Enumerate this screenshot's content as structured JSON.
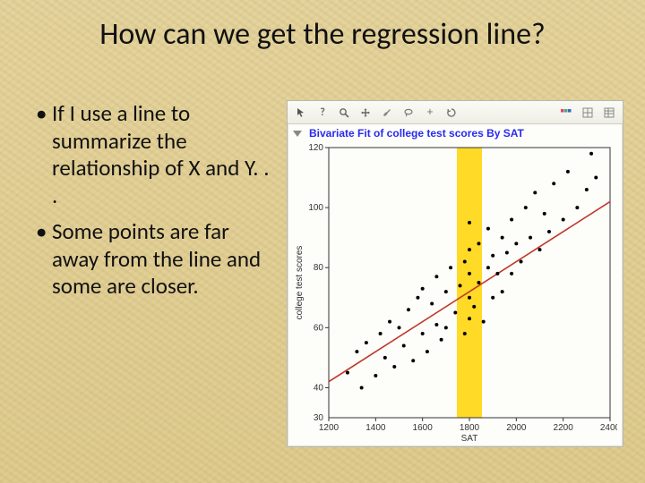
{
  "title": {
    "text": "How can we get the regression line?",
    "fontsize": 34
  },
  "bullets": {
    "fontsize": 25,
    "items": [
      "If I use a line to summarize the relationship of X and Y. . .",
      "Some points are far away from the line and some are closer."
    ]
  },
  "chart": {
    "header": {
      "text": "Bivariate Fit of college test scores By SAT",
      "fontsize": 12,
      "color": "#2a2af0"
    },
    "type": "scatter",
    "background_color": "#fdfdfa",
    "axis_color": "#333333",
    "tick_fontsize": 10,
    "label_fontsize": 10,
    "xlim": [
      1200,
      2400
    ],
    "xtick_step": 200,
    "ylim": [
      30,
      120
    ],
    "ytick_step": 20,
    "xlabel": "SAT",
    "ylabel": "college test scores",
    "regression_line": {
      "color": "#c0392b",
      "width": 1.6,
      "x1": 1200,
      "y1": 42,
      "x2": 2400,
      "y2": 102
    },
    "highlight_band": {
      "color": "#ffd400",
      "opacity": 0.85,
      "x": 1800,
      "width": 28
    },
    "marker": {
      "shape": "circle",
      "radius": 2.0,
      "color": "#000000"
    },
    "points": [
      [
        1280,
        45
      ],
      [
        1320,
        52
      ],
      [
        1340,
        40
      ],
      [
        1360,
        55
      ],
      [
        1400,
        44
      ],
      [
        1420,
        58
      ],
      [
        1440,
        50
      ],
      [
        1460,
        62
      ],
      [
        1480,
        47
      ],
      [
        1500,
        60
      ],
      [
        1520,
        54
      ],
      [
        1540,
        66
      ],
      [
        1560,
        49
      ],
      [
        1580,
        70
      ],
      [
        1600,
        58
      ],
      [
        1600,
        73
      ],
      [
        1620,
        52
      ],
      [
        1640,
        68
      ],
      [
        1660,
        61
      ],
      [
        1660,
        77
      ],
      [
        1680,
        56
      ],
      [
        1700,
        72
      ],
      [
        1700,
        60
      ],
      [
        1720,
        80
      ],
      [
        1740,
        65
      ],
      [
        1760,
        74
      ],
      [
        1780,
        58
      ],
      [
        1780,
        82
      ],
      [
        1800,
        63
      ],
      [
        1800,
        70
      ],
      [
        1800,
        78
      ],
      [
        1800,
        86
      ],
      [
        1800,
        95
      ],
      [
        1820,
        67
      ],
      [
        1840,
        75
      ],
      [
        1840,
        88
      ],
      [
        1860,
        62
      ],
      [
        1880,
        80
      ],
      [
        1880,
        93
      ],
      [
        1900,
        70
      ],
      [
        1900,
        84
      ],
      [
        1920,
        78
      ],
      [
        1940,
        90
      ],
      [
        1940,
        72
      ],
      [
        1960,
        85
      ],
      [
        1980,
        96
      ],
      [
        1980,
        78
      ],
      [
        2000,
        88
      ],
      [
        2020,
        82
      ],
      [
        2040,
        100
      ],
      [
        2060,
        90
      ],
      [
        2080,
        105
      ],
      [
        2100,
        86
      ],
      [
        2120,
        98
      ],
      [
        2140,
        92
      ],
      [
        2160,
        108
      ],
      [
        2200,
        96
      ],
      [
        2220,
        112
      ],
      [
        2260,
        100
      ],
      [
        2300,
        106
      ],
      [
        2320,
        118
      ],
      [
        2340,
        110
      ]
    ]
  },
  "toolbar_icons": [
    "pointer-icon",
    "help-icon",
    "zoom-icon",
    "pan-icon",
    "brush-icon",
    "lasso-icon",
    "crosshair-icon",
    "reset-icon",
    "SPACER",
    "palette-icon",
    "grid-icon",
    "table-icon"
  ]
}
